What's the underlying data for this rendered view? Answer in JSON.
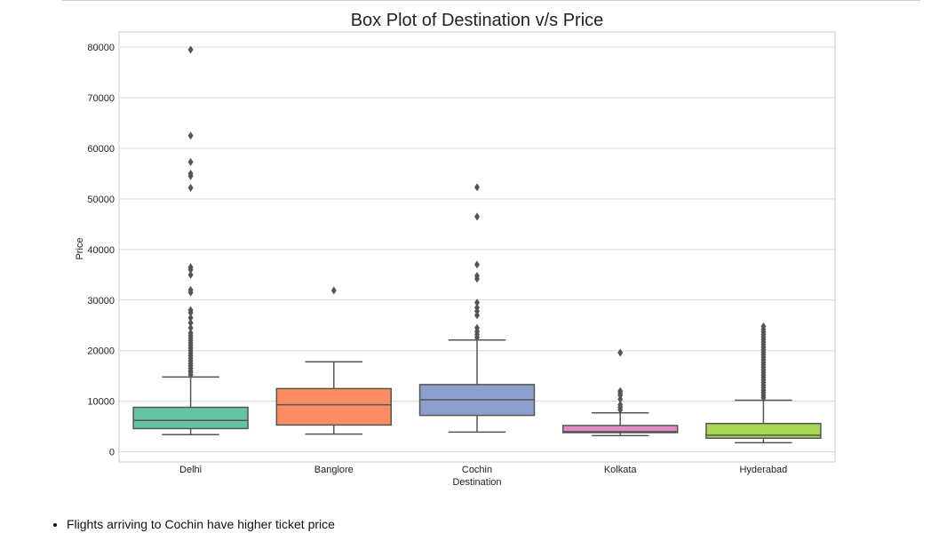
{
  "chart_data": {
    "type": "box",
    "title": "Box Plot of Destination v/s Price",
    "xlabel": "Destination",
    "ylabel": "Price",
    "ylim": [
      -2000,
      83000
    ],
    "yticks": [
      0,
      10000,
      20000,
      30000,
      40000,
      50000,
      60000,
      70000,
      80000
    ],
    "grid": true,
    "categories": [
      "Delhi",
      "Banglore",
      "Cochin",
      "Kolkata",
      "Hyderabad"
    ],
    "boxes": [
      {
        "category": "Delhi",
        "color": "#66c2a5",
        "whisker_low": 3400,
        "q1": 4600,
        "median": 6200,
        "q3": 8800,
        "whisker_high": 14800,
        "outliers": [
          15200,
          15700,
          16000,
          16500,
          17000,
          17500,
          18000,
          18500,
          19000,
          19500,
          20000,
          20500,
          21000,
          21500,
          22000,
          22500,
          23000,
          23500,
          24500,
          25500,
          26500,
          27500,
          28000,
          31500,
          32000,
          35000,
          36000,
          36500,
          52200,
          54500,
          55000,
          57300,
          62500,
          79500
        ]
      },
      {
        "category": "Banglore",
        "color": "#fc8d62",
        "whisker_low": 3500,
        "q1": 5300,
        "median": 9300,
        "q3": 12500,
        "whisker_high": 17800,
        "outliers": [
          31900
        ]
      },
      {
        "category": "Cochin",
        "color": "#8da0cb",
        "whisker_low": 3900,
        "q1": 7200,
        "median": 10300,
        "q3": 13300,
        "whisker_high": 22100,
        "outliers": [
          22600,
          23200,
          23800,
          24500,
          27000,
          27800,
          28500,
          29500,
          34200,
          34800,
          37000,
          46500,
          52300
        ]
      },
      {
        "category": "Kolkata",
        "color": "#e78ac3",
        "whisker_low": 3200,
        "q1": 3800,
        "median": 4000,
        "q3": 5200,
        "whisker_high": 7700,
        "outliers": [
          8300,
          8800,
          9300,
          10400,
          11200,
          11600,
          12000,
          19600
        ]
      },
      {
        "category": "Hyderabad",
        "color": "#a6d854",
        "whisker_low": 1800,
        "q1": 2700,
        "median": 3300,
        "q3": 5600,
        "whisker_high": 10200,
        "outliers": [
          10700,
          11200,
          11700,
          12200,
          12700,
          13200,
          13700,
          14200,
          14700,
          15200,
          15700,
          16200,
          16700,
          17200,
          17700,
          18200,
          18700,
          19200,
          19700,
          20200,
          20700,
          21200,
          21700,
          22200,
          22700,
          23200,
          23700,
          24200,
          24800
        ]
      }
    ]
  },
  "notes": [
    "Flights arriving to Cochin have higher ticket price"
  ]
}
